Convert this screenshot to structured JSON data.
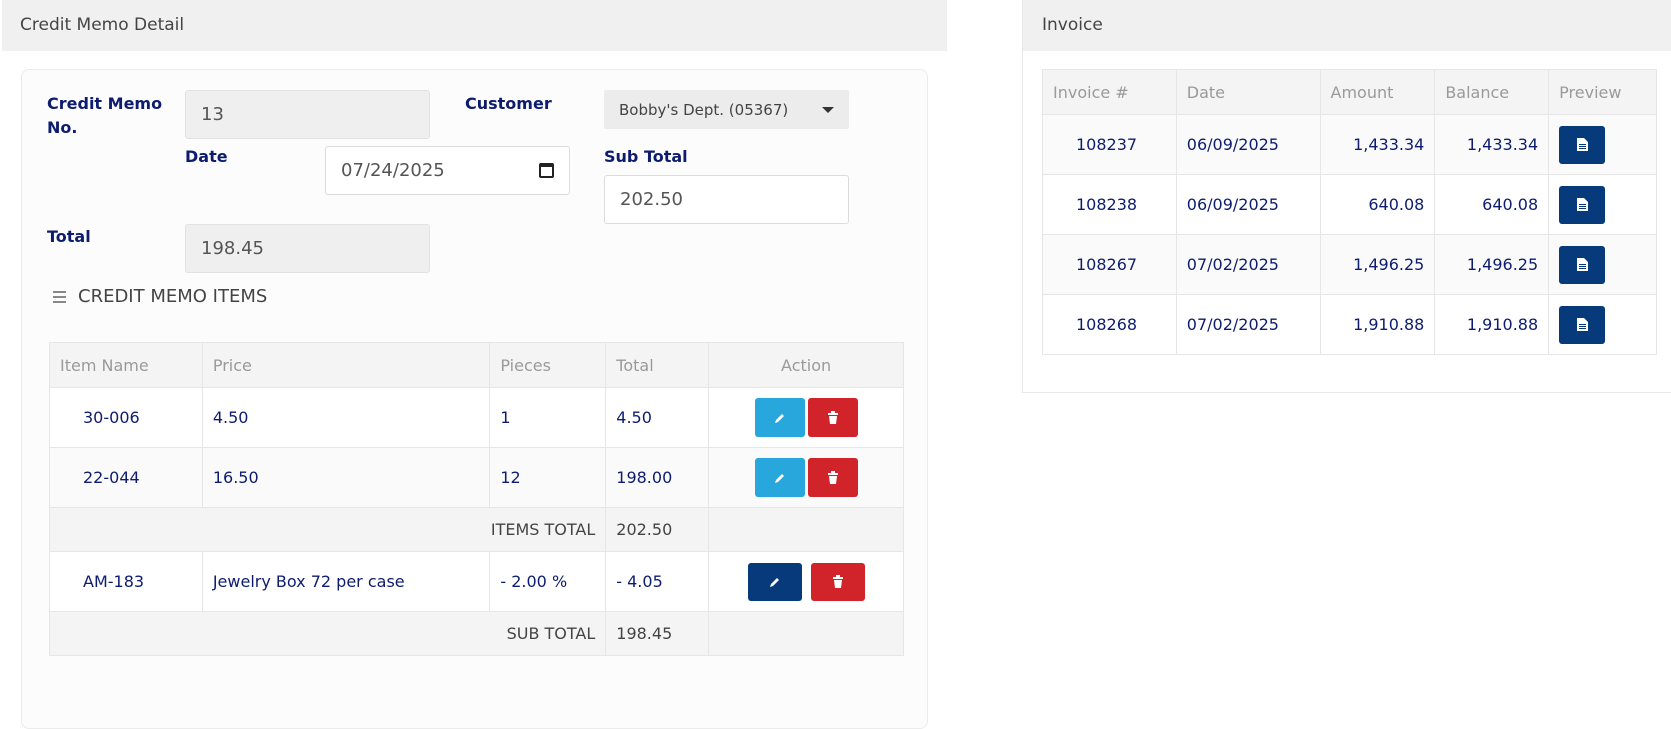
{
  "credit_memo": {
    "header": "Credit Memo Detail",
    "memo_no_label": "Credit Memo No.",
    "memo_no_value": "13",
    "customer_label": "Customer",
    "customer_value": "Bobby's Dept. (05367)",
    "date_label": "Date",
    "date_value": "07/24/2025",
    "subtotal_label": "Sub Total",
    "subtotal_value": "202.50",
    "total_label": "Total",
    "total_value": "198.45",
    "items_title": "CREDIT MEMO ITEMS",
    "columns": [
      "Item Name",
      "Price",
      "Pieces",
      "Total",
      "Action"
    ],
    "items": [
      {
        "name": "30-006",
        "price": "4.50",
        "pieces": "1",
        "total": "4.50"
      },
      {
        "name": "22-044",
        "price": "16.50",
        "pieces": "12",
        "total": "198.00"
      }
    ],
    "items_total_label": "ITEMS TOTAL",
    "items_total_value": "202.50",
    "discount": {
      "name": "AM-183",
      "price": "Jewelry Box 72 per case",
      "pieces": "- 2.00 %",
      "total": "- 4.05"
    },
    "sub_total_label": "SUB TOTAL",
    "sub_total_value": "198.45"
  },
  "invoice": {
    "header": "Invoice",
    "columns": [
      "Invoice #",
      "Date",
      "Amount",
      "Balance",
      "Preview"
    ],
    "rows": [
      {
        "id": "108237",
        "date": "06/09/2025",
        "amount": "1,433.34",
        "balance": "1,433.34"
      },
      {
        "id": "108238",
        "date": "06/09/2025",
        "amount": "640.08",
        "balance": "640.08"
      },
      {
        "id": "108267",
        "date": "07/02/2025",
        "amount": "1,496.25",
        "balance": "1,496.25"
      },
      {
        "id": "108268",
        "date": "07/02/2025",
        "amount": "1,910.88",
        "balance": "1,910.88"
      }
    ]
  },
  "icons": {
    "edit": "pencil-icon",
    "delete": "trash-icon",
    "preview": "document-icon",
    "menu": "hamburger-icon",
    "calendar": "calendar-icon",
    "dropdown": "caret-down-icon"
  },
  "colors": {
    "label": "#0d1c6e",
    "info": "#27a7dc",
    "danger": "#d1242a",
    "primary": "#063a7a"
  }
}
